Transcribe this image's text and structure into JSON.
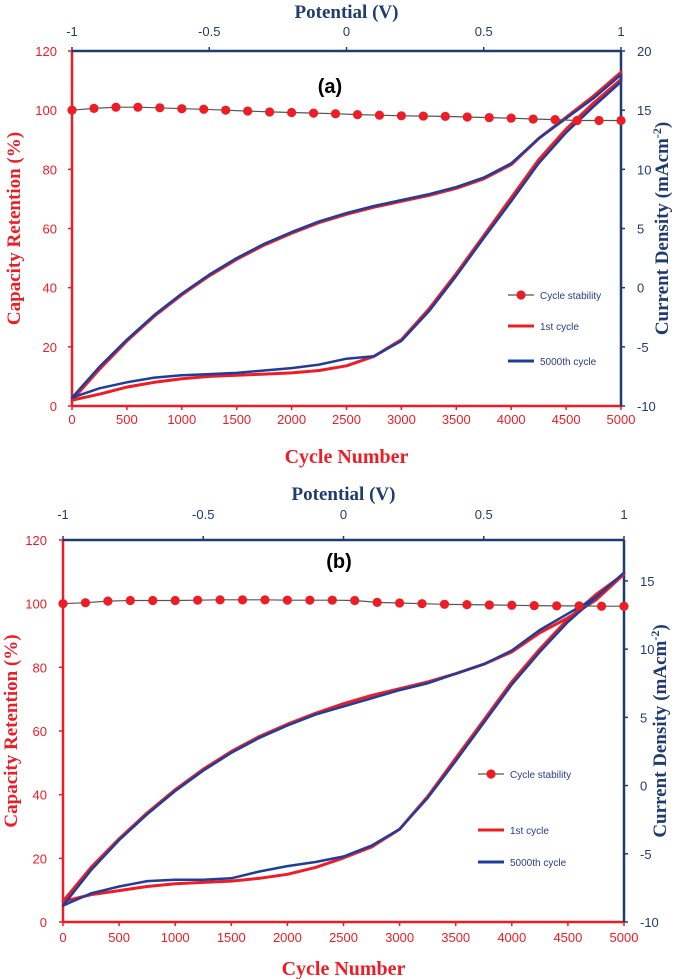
{
  "colors": {
    "red": "#ee1c25",
    "blue": "#1f3d9a",
    "navy": "#203b70",
    "stability_line": "#555555"
  },
  "chart_data": [
    {
      "type": "line",
      "panel_label": "(a)",
      "top_axis_title": "Potential (V)",
      "top_axis_range": [
        -1,
        1
      ],
      "top_axis_ticks": [
        "-1",
        "-0.5",
        "0",
        "0.5",
        "1"
      ],
      "bottom_axis_title": "Cycle Number",
      "bottom_axis_range": [
        0,
        5000
      ],
      "bottom_axis_ticks": [
        "0",
        "500",
        "1000",
        "1500",
        "2000",
        "2500",
        "3000",
        "3500",
        "4000",
        "4500",
        "5000"
      ],
      "left_axis_title": "Capacity Retention (%)",
      "left_axis_range": [
        0,
        120
      ],
      "left_axis_ticks": [
        "0",
        "20",
        "40",
        "60",
        "80",
        "100",
        "120"
      ],
      "right_axis_title_main": "Current Density (mAcm",
      "right_axis_title_sup": "-2",
      "right_axis_title_end": ")",
      "right_axis_range": [
        -10,
        20
      ],
      "right_axis_ticks": [
        "-10",
        "-5",
        "0",
        "5",
        "10",
        "15",
        "20"
      ],
      "legend": [
        "Cycle stability",
        "1st cycle",
        "5000th cycle"
      ],
      "stability": {
        "cycles": [
          0,
          200,
          400,
          600,
          800,
          1000,
          1200,
          1400,
          1600,
          1800,
          2000,
          2200,
          2400,
          2600,
          2800,
          3000,
          3200,
          3400,
          3600,
          3800,
          4000,
          4200,
          4400,
          4600,
          4800,
          5000
        ],
        "retention": [
          100,
          100.6,
          101,
          101,
          100.8,
          100.5,
          100.3,
          100,
          99.7,
          99.4,
          99.2,
          99,
          98.8,
          98.5,
          98.3,
          98.1,
          98,
          97.9,
          97.7,
          97.5,
          97.3,
          97,
          96.8,
          96.5,
          96.5,
          96.5
        ]
      },
      "cv_1st": {
        "upper": {
          "potential": [
            -1,
            -0.9,
            -0.8,
            -0.7,
            -0.6,
            -0.5,
            -0.4,
            -0.3,
            -0.2,
            -0.1,
            0,
            0.1,
            0.2,
            0.3,
            0.4,
            0.5,
            0.6,
            0.7,
            0.8,
            0.9,
            1
          ],
          "current": [
            -9.5,
            -6.9,
            -4.5,
            -2.4,
            -0.6,
            1.0,
            2.4,
            3.6,
            4.6,
            5.5,
            6.2,
            6.8,
            7.3,
            7.8,
            8.4,
            9.2,
            10.4,
            12.6,
            14.4,
            16.2,
            18.2
          ]
        },
        "lower": {
          "potential": [
            -1,
            -0.9,
            -0.8,
            -0.7,
            -0.6,
            -0.5,
            -0.4,
            -0.3,
            -0.2,
            -0.1,
            0,
            0.1,
            0.2,
            0.3,
            0.4,
            0.5,
            0.6,
            0.7,
            0.8,
            0.9,
            1
          ],
          "current": [
            -9.5,
            -9.0,
            -8.4,
            -8.0,
            -7.7,
            -7.5,
            -7.4,
            -7.3,
            -7.2,
            -7.0,
            -6.6,
            -5.8,
            -4.4,
            -1.8,
            1.2,
            4.4,
            7.6,
            10.8,
            13.4,
            15.6,
            17.6
          ]
        }
      },
      "cv_5000th": {
        "upper": {
          "potential": [
            -1,
            -0.9,
            -0.8,
            -0.7,
            -0.6,
            -0.5,
            -0.4,
            -0.3,
            -0.2,
            -0.1,
            0,
            0.1,
            0.2,
            0.3,
            0.4,
            0.5,
            0.6,
            0.7,
            0.8,
            0.9,
            1
          ],
          "current": [
            -9.3,
            -6.7,
            -4.4,
            -2.3,
            -0.5,
            1.1,
            2.5,
            3.7,
            4.7,
            5.6,
            6.3,
            6.9,
            7.4,
            7.9,
            8.5,
            9.3,
            10.5,
            12.6,
            14.3,
            16.0,
            18.0
          ]
        },
        "lower": {
          "potential": [
            -1,
            -0.9,
            -0.8,
            -0.7,
            -0.6,
            -0.5,
            -0.4,
            -0.3,
            -0.2,
            -0.1,
            0,
            0.1,
            0.2,
            0.3,
            0.4,
            0.5,
            0.6,
            0.7,
            0.8,
            0.9,
            1
          ],
          "current": [
            -9.3,
            -8.5,
            -8.0,
            -7.6,
            -7.4,
            -7.3,
            -7.2,
            -7.0,
            -6.8,
            -6.5,
            -6.0,
            -5.8,
            -4.5,
            -2.0,
            1.0,
            4.2,
            7.3,
            10.5,
            13.1,
            15.3,
            17.4
          ]
        }
      }
    },
    {
      "type": "line",
      "panel_label": "(b)",
      "top_axis_title": "Potential (V)",
      "top_axis_range": [
        -1,
        1
      ],
      "top_axis_ticks": [
        "-1",
        "-0.5",
        "0",
        "0.5",
        "1"
      ],
      "bottom_axis_title": "Cycle Number",
      "bottom_axis_range": [
        0,
        5000
      ],
      "bottom_axis_ticks": [
        "0",
        "500",
        "1000",
        "1500",
        "2000",
        "2500",
        "3000",
        "3500",
        "4000",
        "4500",
        "5000"
      ],
      "left_axis_title": "Capacity Retention (%)",
      "left_axis_range": [
        0,
        120
      ],
      "left_axis_ticks": [
        "0",
        "20",
        "40",
        "60",
        "80",
        "100",
        "120"
      ],
      "right_axis_title_main": "Current Density (mAcm",
      "right_axis_title_sup": "-2",
      "right_axis_title_end": ")",
      "right_axis_range": [
        -10,
        18
      ],
      "right_axis_ticks": [
        "-10",
        "-5",
        "0",
        "5",
        "10",
        "15"
      ],
      "legend": [
        "Cycle stability",
        "1st cycle",
        "5000th cycle"
      ],
      "stability": {
        "cycles": [
          0,
          200,
          400,
          600,
          800,
          1000,
          1200,
          1400,
          1600,
          1800,
          2000,
          2200,
          2400,
          2600,
          2800,
          3000,
          3200,
          3400,
          3600,
          3800,
          4000,
          4200,
          4400,
          4600,
          4800,
          5000
        ],
        "retention": [
          100,
          100.3,
          100.8,
          101,
          101,
          101,
          101.1,
          101.2,
          101.2,
          101.2,
          101.1,
          101.1,
          101.1,
          101,
          100.4,
          100.2,
          100,
          99.8,
          99.7,
          99.6,
          99.5,
          99.4,
          99.3,
          99.3,
          99.2,
          99.2
        ]
      },
      "cv_1st": {
        "upper": {
          "potential": [
            -1,
            -0.9,
            -0.8,
            -0.7,
            -0.6,
            -0.5,
            -0.4,
            -0.3,
            -0.2,
            -0.1,
            0,
            0.1,
            0.2,
            0.3,
            0.4,
            0.5,
            0.6,
            0.7,
            0.8,
            0.9,
            1
          ],
          "current": [
            -8.5,
            -6.0,
            -3.9,
            -2.0,
            -0.3,
            1.2,
            2.5,
            3.6,
            4.5,
            5.3,
            6.0,
            6.6,
            7.1,
            7.6,
            8.2,
            8.9,
            9.8,
            11.2,
            12.3,
            13.6,
            15.5
          ]
        },
        "lower": {
          "potential": [
            -1,
            -0.9,
            -0.8,
            -0.7,
            -0.6,
            -0.5,
            -0.4,
            -0.3,
            -0.2,
            -0.1,
            0,
            0.1,
            0.2,
            0.3,
            0.4,
            0.5,
            0.6,
            0.7,
            0.8,
            0.9,
            1
          ],
          "current": [
            -8.5,
            -8.0,
            -7.7,
            -7.4,
            -7.2,
            -7.1,
            -7.0,
            -6.8,
            -6.5,
            -6.0,
            -5.3,
            -4.5,
            -3.2,
            -0.8,
            2.0,
            4.8,
            7.6,
            10.0,
            12.2,
            14.0,
            15.5
          ]
        }
      },
      "cv_5000th": {
        "upper": {
          "potential": [
            -1,
            -0.9,
            -0.8,
            -0.7,
            -0.6,
            -0.5,
            -0.4,
            -0.3,
            -0.2,
            -0.1,
            0,
            0.1,
            0.2,
            0.3,
            0.4,
            0.5,
            0.6,
            0.7,
            0.8,
            0.9,
            1
          ],
          "current": [
            -8.8,
            -6.2,
            -4.0,
            -2.1,
            -0.4,
            1.1,
            2.4,
            3.5,
            4.4,
            5.2,
            5.8,
            6.4,
            7.0,
            7.5,
            8.2,
            8.9,
            9.9,
            11.4,
            12.6,
            13.8,
            15.6
          ]
        },
        "lower": {
          "potential": [
            -1,
            -0.9,
            -0.8,
            -0.7,
            -0.6,
            -0.5,
            -0.4,
            -0.3,
            -0.2,
            -0.1,
            0,
            0.1,
            0.2,
            0.3,
            0.4,
            0.5,
            0.6,
            0.7,
            0.8,
            0.9,
            1
          ],
          "current": [
            -8.8,
            -7.9,
            -7.4,
            -7.0,
            -6.9,
            -6.9,
            -6.8,
            -6.3,
            -5.9,
            -5.6,
            -5.2,
            -4.4,
            -3.2,
            -0.9,
            1.8,
            4.6,
            7.4,
            9.8,
            12.0,
            13.8,
            15.6
          ]
        }
      }
    }
  ]
}
